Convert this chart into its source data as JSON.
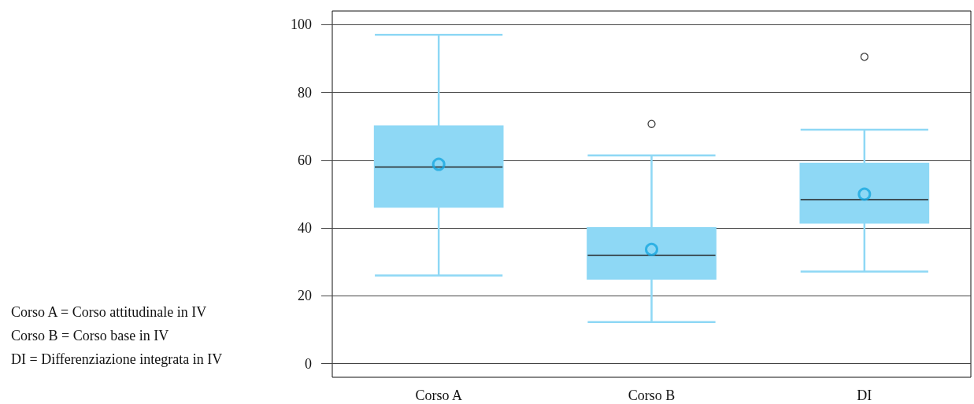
{
  "chart_data": {
    "type": "box",
    "categories": [
      "Corso A",
      "Corso B",
      "DI"
    ],
    "ylim": [
      -4,
      104
    ],
    "yticks": [
      0,
      20,
      40,
      60,
      80,
      100
    ],
    "grid": "y",
    "series": [
      {
        "color": "#8ed8f5",
        "boxes": [
          {
            "low": 26,
            "q1": 46.3,
            "median": 58,
            "q3": 70,
            "high": 97,
            "mean": 58.8
          },
          {
            "low": 12.3,
            "q1": 25.1,
            "median": 32,
            "q3": 40,
            "high": 61.4,
            "mean": 33.7,
            "outliers": [
              70.7
            ]
          },
          {
            "low": 27.2,
            "q1": 41.6,
            "median": 48.4,
            "q3": 59,
            "high": 69,
            "mean": 50,
            "outliers": [
              90.5
            ]
          }
        ]
      }
    ],
    "annotations": [
      "Corso A = Corso attitudinale in IV",
      "Corso B = Corso base in IV",
      "DI = Differenziazione integrata in IV"
    ]
  }
}
